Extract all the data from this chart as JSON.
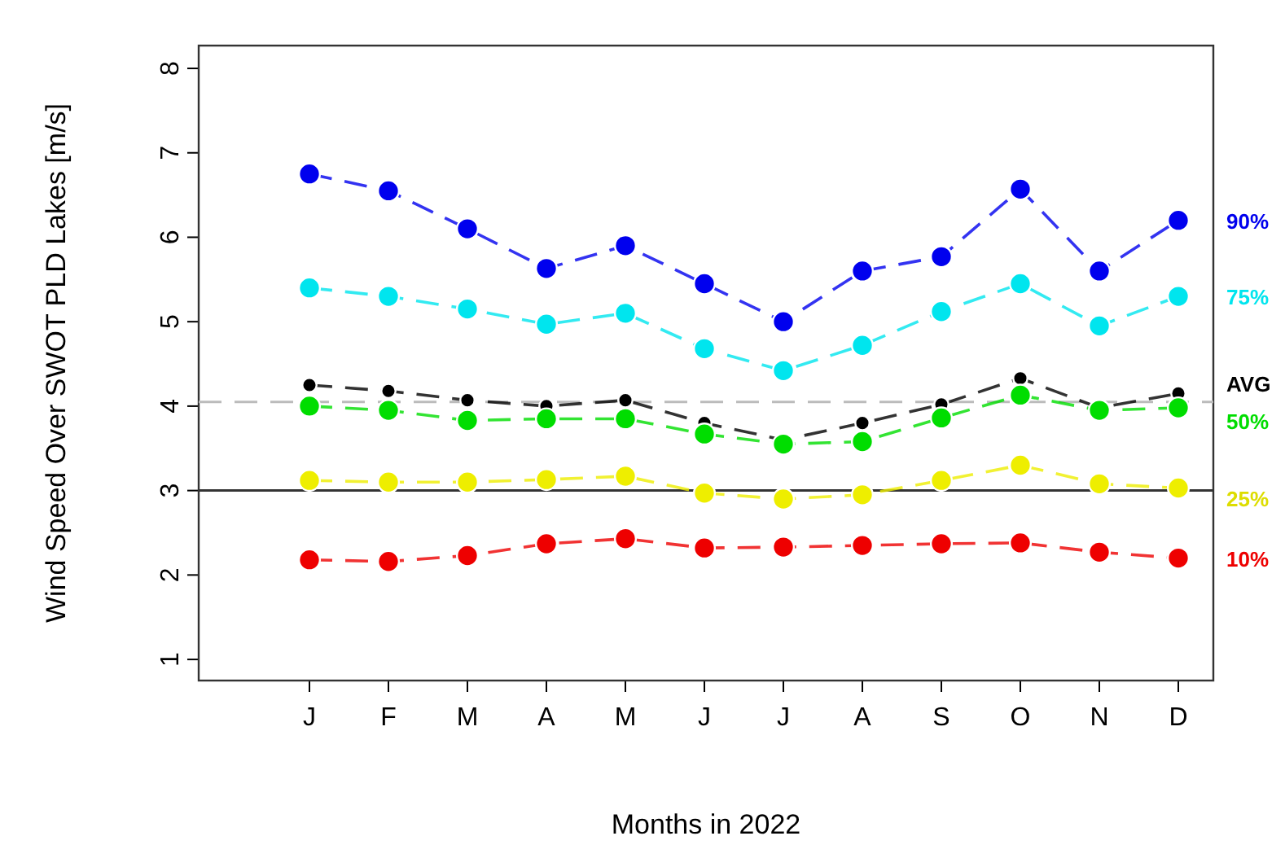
{
  "chart_data": {
    "type": "line",
    "xlabel": "Months in 2022",
    "ylabel": "Wind Speed Over SWOT PLD Lakes [m/s]",
    "categories": [
      "J",
      "F",
      "M",
      "A",
      "M",
      "J",
      "J",
      "A",
      "S",
      "O",
      "N",
      "D"
    ],
    "ylim": [
      0.75,
      8.27
    ],
    "yticks": [
      1,
      2,
      3,
      4,
      5,
      6,
      7,
      8
    ],
    "grid": false,
    "marker": "circle",
    "line_style": "dashed",
    "ref_lines": [
      {
        "axis": "y",
        "value": 4.05,
        "color": "#bbbbbb",
        "line_style": "dashed"
      },
      {
        "axis": "y",
        "value": 3,
        "color": "#333333",
        "line_style": "solid"
      }
    ],
    "series": [
      {
        "name": "90%",
        "color": "#0000ee",
        "values": [
          6.75,
          6.55,
          6.1,
          5.63,
          5.9,
          5.45,
          5.0,
          5.6,
          5.77,
          6.57,
          5.6,
          6.2
        ]
      },
      {
        "name": "75%",
        "color": "#00e5ee",
        "values": [
          5.4,
          5.3,
          5.15,
          4.97,
          5.1,
          4.68,
          4.42,
          4.72,
          5.12,
          5.45,
          4.95,
          5.3
        ]
      },
      {
        "name": "AVG",
        "color": "#000000",
        "values": [
          4.25,
          4.18,
          4.07,
          4.0,
          4.07,
          3.8,
          3.6,
          3.8,
          4.02,
          4.33,
          3.98,
          4.15
        ]
      },
      {
        "name": "50%",
        "color": "#00dd00",
        "values": [
          4.0,
          3.95,
          3.83,
          3.85,
          3.85,
          3.67,
          3.55,
          3.58,
          3.86,
          4.13,
          3.95,
          3.98
        ]
      },
      {
        "name": "25%",
        "color": "#eeee00",
        "values": [
          3.12,
          3.1,
          3.1,
          3.13,
          3.17,
          2.97,
          2.9,
          2.95,
          3.12,
          3.3,
          3.08,
          3.03
        ]
      },
      {
        "name": "10%",
        "color": "#ee0000",
        "values": [
          2.18,
          2.16,
          2.23,
          2.37,
          2.43,
          2.32,
          2.33,
          2.35,
          2.37,
          2.38,
          2.27,
          2.2
        ]
      }
    ]
  }
}
